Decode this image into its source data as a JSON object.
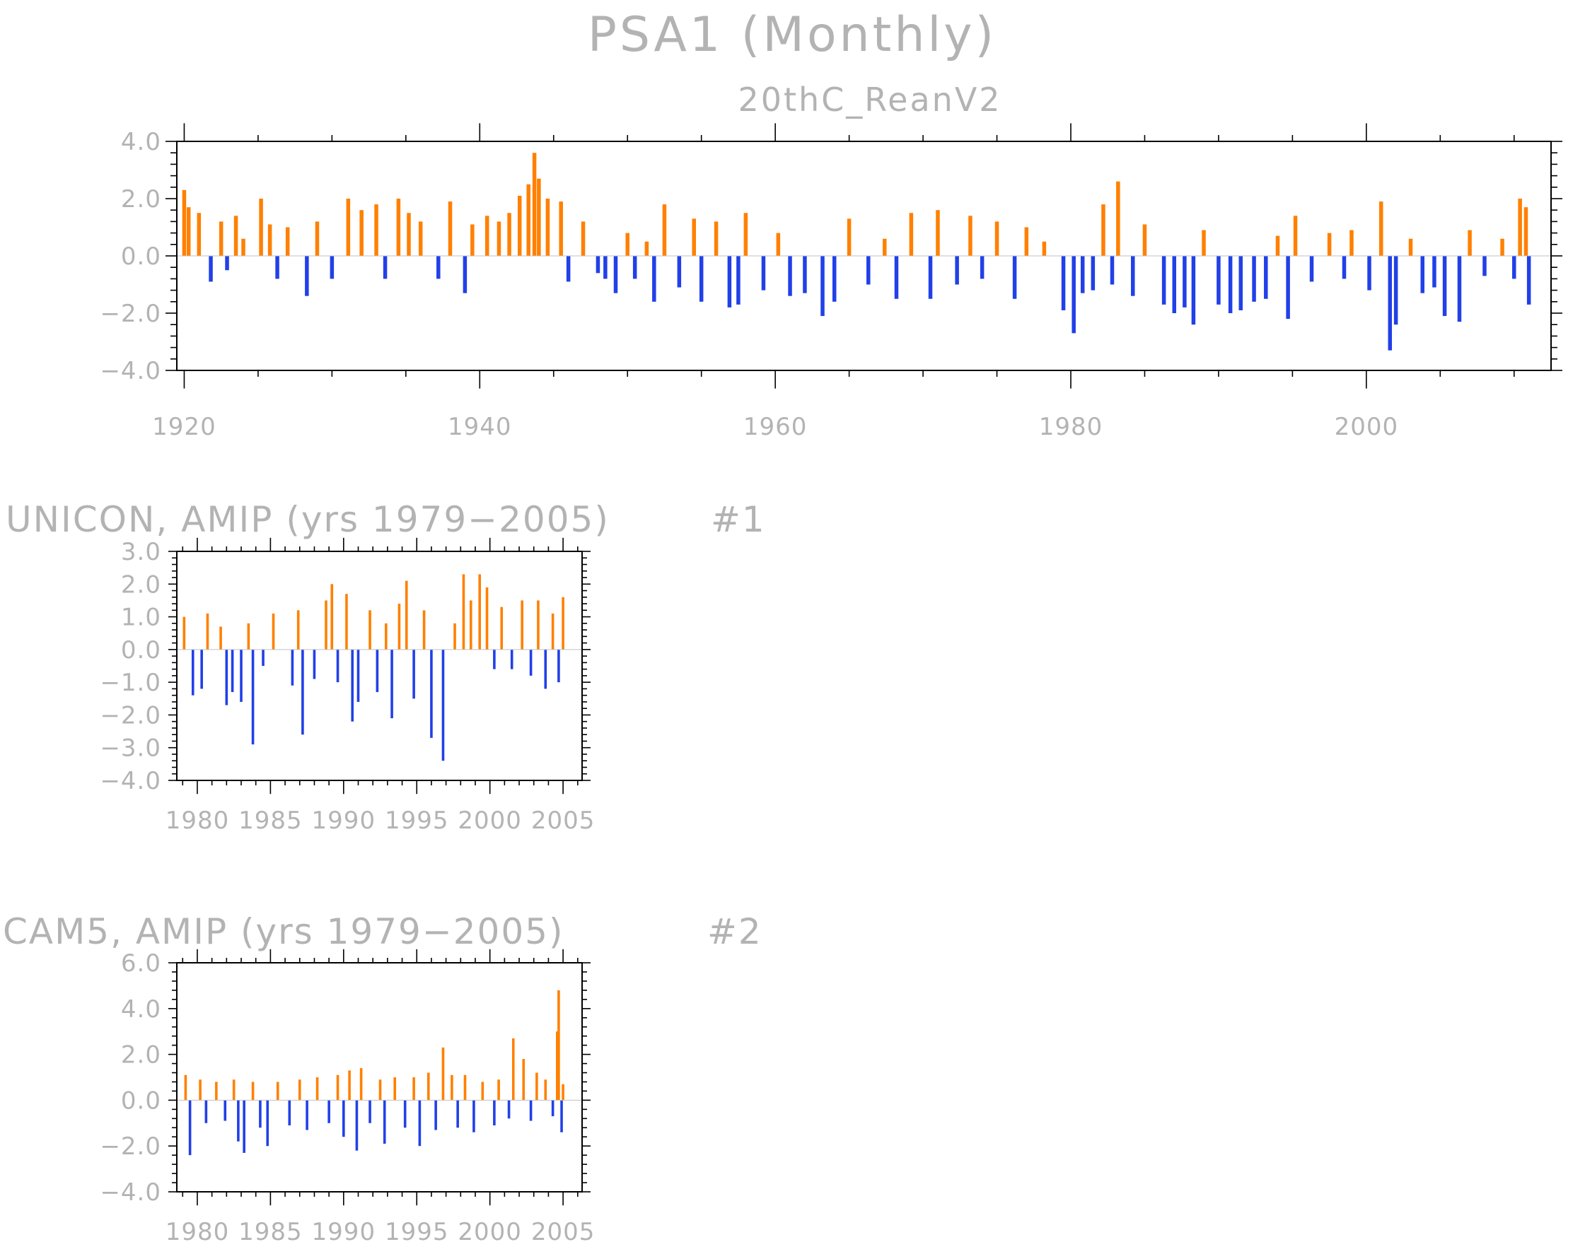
{
  "page": {
    "title": "PSA1 (Monthly)"
  },
  "colors": {
    "positive": "#ff8000",
    "negative": "#2140e8",
    "text": "#b3b3b3",
    "axes": "#000000"
  },
  "chart_data": [
    {
      "type": "bar",
      "title": "",
      "subtitle": "20thC_ReanV2",
      "tag": "",
      "xlabel": "",
      "ylabel": "",
      "x_range": [
        1920,
        2011
      ],
      "xlim": [
        1919.5,
        2012.5
      ],
      "ylim": [
        -4.0,
        4.0
      ],
      "yticks": [
        -4.0,
        -2.0,
        0.0,
        2.0,
        4.0
      ],
      "ytick_labels": [
        "−4.0",
        "−2.0",
        "0.0",
        "2.0",
        "4.0"
      ],
      "xticks": [
        1920,
        1940,
        1960,
        1980,
        2000
      ],
      "xtick_labels": [
        "1920",
        "1940",
        "1960",
        "1980",
        "2000"
      ],
      "x_minor_step": 5,
      "colors": {
        "positive": "#ff8000",
        "negative": "#2140e8"
      },
      "values": [
        [
          1920.0,
          2.3
        ],
        [
          1920.3,
          1.7
        ],
        [
          1921.0,
          1.5
        ],
        [
          1921.8,
          -0.9
        ],
        [
          1922.5,
          1.2
        ],
        [
          1922.9,
          -0.5
        ],
        [
          1923.5,
          1.4
        ],
        [
          1924.0,
          0.6
        ],
        [
          1925.2,
          2.0
        ],
        [
          1925.8,
          1.1
        ],
        [
          1926.3,
          -0.8
        ],
        [
          1927.0,
          1.0
        ],
        [
          1928.3,
          -1.4
        ],
        [
          1929.0,
          1.2
        ],
        [
          1930.0,
          -0.8
        ],
        [
          1931.1,
          2.0
        ],
        [
          1932.0,
          1.6
        ],
        [
          1933.0,
          1.8
        ],
        [
          1933.6,
          -0.8
        ],
        [
          1934.5,
          2.0
        ],
        [
          1935.2,
          1.5
        ],
        [
          1936.0,
          1.2
        ],
        [
          1937.2,
          -0.8
        ],
        [
          1938.0,
          1.9
        ],
        [
          1939.0,
          -1.3
        ],
        [
          1939.5,
          1.1
        ],
        [
          1940.5,
          1.4
        ],
        [
          1941.3,
          1.2
        ],
        [
          1942.0,
          1.5
        ],
        [
          1942.7,
          2.1
        ],
        [
          1943.3,
          2.5
        ],
        [
          1943.7,
          3.6
        ],
        [
          1944.0,
          2.7
        ],
        [
          1944.6,
          2.0
        ],
        [
          1945.5,
          1.9
        ],
        [
          1946.0,
          -0.9
        ],
        [
          1947.0,
          1.2
        ],
        [
          1948.0,
          -0.6
        ],
        [
          1948.5,
          -0.8
        ],
        [
          1949.2,
          -1.3
        ],
        [
          1950.0,
          0.8
        ],
        [
          1950.5,
          -0.8
        ],
        [
          1951.3,
          0.5
        ],
        [
          1951.8,
          -1.6
        ],
        [
          1952.5,
          1.8
        ],
        [
          1953.5,
          -1.1
        ],
        [
          1954.5,
          1.3
        ],
        [
          1955.0,
          -1.6
        ],
        [
          1956.0,
          1.2
        ],
        [
          1956.9,
          -1.8
        ],
        [
          1957.5,
          -1.7
        ],
        [
          1958.0,
          1.5
        ],
        [
          1959.2,
          -1.2
        ],
        [
          1960.2,
          0.8
        ],
        [
          1961.0,
          -1.4
        ],
        [
          1962.0,
          -1.3
        ],
        [
          1963.2,
          -2.1
        ],
        [
          1964.0,
          -1.6
        ],
        [
          1965.0,
          1.3
        ],
        [
          1966.3,
          -1.0
        ],
        [
          1967.4,
          0.6
        ],
        [
          1968.2,
          -1.5
        ],
        [
          1969.2,
          1.5
        ],
        [
          1970.5,
          -1.5
        ],
        [
          1971.0,
          1.6
        ],
        [
          1972.3,
          -1.0
        ],
        [
          1973.2,
          1.4
        ],
        [
          1974.0,
          -0.8
        ],
        [
          1975.0,
          1.2
        ],
        [
          1976.2,
          -1.5
        ],
        [
          1977.0,
          1.0
        ],
        [
          1978.2,
          0.5
        ],
        [
          1979.5,
          -1.9
        ],
        [
          1980.2,
          -2.7
        ],
        [
          1980.8,
          -1.3
        ],
        [
          1981.5,
          -1.2
        ],
        [
          1982.2,
          1.8
        ],
        [
          1982.8,
          -1.0
        ],
        [
          1983.2,
          2.6
        ],
        [
          1984.2,
          -1.4
        ],
        [
          1985.0,
          1.1
        ],
        [
          1986.3,
          -1.7
        ],
        [
          1987.0,
          -2.0
        ],
        [
          1987.7,
          -1.8
        ],
        [
          1988.3,
          -2.4
        ],
        [
          1989.0,
          0.9
        ],
        [
          1990.0,
          -1.7
        ],
        [
          1990.8,
          -2.0
        ],
        [
          1991.5,
          -1.9
        ],
        [
          1992.4,
          -1.6
        ],
        [
          1993.2,
          -1.5
        ],
        [
          1994.0,
          0.7
        ],
        [
          1994.7,
          -2.2
        ],
        [
          1995.2,
          1.4
        ],
        [
          1996.3,
          -0.9
        ],
        [
          1997.5,
          0.8
        ],
        [
          1998.5,
          -0.8
        ],
        [
          1999.0,
          0.9
        ],
        [
          2000.2,
          -1.2
        ],
        [
          2001.0,
          1.9
        ],
        [
          2001.6,
          -3.3
        ],
        [
          2002.0,
          -2.4
        ],
        [
          2003.0,
          0.6
        ],
        [
          2003.8,
          -1.3
        ],
        [
          2004.6,
          -1.1
        ],
        [
          2005.3,
          -2.1
        ],
        [
          2006.3,
          -2.3
        ],
        [
          2007.0,
          0.9
        ],
        [
          2008.0,
          -0.7
        ],
        [
          2009.2,
          0.6
        ],
        [
          2010.0,
          -0.8
        ],
        [
          2010.4,
          2.0
        ],
        [
          2010.8,
          1.7
        ],
        [
          2011.0,
          -1.7
        ]
      ]
    },
    {
      "type": "bar",
      "title": "UNICON, AMIP (yrs 1979−2005)",
      "tag": "#1",
      "xlabel": "",
      "ylabel": "",
      "x_range": [
        1979,
        2005
      ],
      "xlim": [
        1978.6,
        2006.3
      ],
      "ylim": [
        -4.0,
        3.0
      ],
      "yticks": [
        -4.0,
        -3.0,
        -2.0,
        -1.0,
        0.0,
        1.0,
        2.0,
        3.0
      ],
      "ytick_labels": [
        "−4.0",
        "−3.0",
        "−2.0",
        "−1.0",
        "0.0",
        "1.0",
        "2.0",
        "3.0"
      ],
      "xticks": [
        1980,
        1985,
        1990,
        1995,
        2000,
        2005
      ],
      "xtick_labels": [
        "1980",
        "1985",
        "1990",
        "1995",
        "2000",
        "2005"
      ],
      "x_minor_step": 1,
      "colors": {
        "positive": "#ff8000",
        "negative": "#2140e8"
      },
      "values": [
        [
          1979.1,
          1.0
        ],
        [
          1979.7,
          -1.4
        ],
        [
          1980.3,
          -1.2
        ],
        [
          1980.7,
          1.1
        ],
        [
          1981.6,
          0.7
        ],
        [
          1982.0,
          -1.7
        ],
        [
          1982.4,
          -1.3
        ],
        [
          1983.0,
          -1.6
        ],
        [
          1983.5,
          0.8
        ],
        [
          1983.8,
          -2.9
        ],
        [
          1984.5,
          -0.5
        ],
        [
          1985.2,
          1.1
        ],
        [
          1986.5,
          -1.1
        ],
        [
          1986.9,
          1.2
        ],
        [
          1987.2,
          -2.6
        ],
        [
          1988.0,
          -0.9
        ],
        [
          1988.8,
          1.5
        ],
        [
          1989.2,
          2.0
        ],
        [
          1989.6,
          -1.0
        ],
        [
          1990.2,
          1.7
        ],
        [
          1990.6,
          -2.2
        ],
        [
          1991.0,
          -1.6
        ],
        [
          1991.8,
          1.2
        ],
        [
          1992.3,
          -1.3
        ],
        [
          1992.9,
          0.8
        ],
        [
          1993.3,
          -2.1
        ],
        [
          1993.8,
          1.4
        ],
        [
          1994.3,
          2.1
        ],
        [
          1994.8,
          -1.5
        ],
        [
          1995.5,
          1.2
        ],
        [
          1996.0,
          -2.7
        ],
        [
          1996.8,
          -3.4
        ],
        [
          1997.6,
          0.8
        ],
        [
          1998.2,
          2.3
        ],
        [
          1998.7,
          1.5
        ],
        [
          1999.3,
          2.3
        ],
        [
          1999.8,
          1.9
        ],
        [
          2000.3,
          -0.6
        ],
        [
          2000.8,
          1.3
        ],
        [
          2001.5,
          -0.6
        ],
        [
          2002.2,
          1.5
        ],
        [
          2002.8,
          -0.8
        ],
        [
          2003.3,
          1.5
        ],
        [
          2003.8,
          -1.2
        ],
        [
          2004.3,
          1.1
        ],
        [
          2004.7,
          -1.0
        ],
        [
          2005.0,
          1.6
        ]
      ]
    },
    {
      "type": "bar",
      "title": "CAM5, AMIP (yrs 1979−2005)",
      "tag": "#2",
      "xlabel": "",
      "ylabel": "",
      "x_range": [
        1979,
        2005
      ],
      "xlim": [
        1978.6,
        2006.3
      ],
      "ylim": [
        -4.0,
        6.0
      ],
      "yticks": [
        -4.0,
        -2.0,
        0.0,
        2.0,
        4.0,
        6.0
      ],
      "ytick_labels": [
        "−4.0",
        "−2.0",
        "0.0",
        "2.0",
        "4.0",
        "6.0"
      ],
      "xticks": [
        1980,
        1985,
        1990,
        1995,
        2000,
        2005
      ],
      "xtick_labels": [
        "1980",
        "1985",
        "1990",
        "1995",
        "2000",
        "2005"
      ],
      "x_minor_step": 1,
      "colors": {
        "positive": "#ff8000",
        "negative": "#2140e8"
      },
      "values": [
        [
          1979.2,
          1.1
        ],
        [
          1979.5,
          -2.4
        ],
        [
          1980.2,
          0.9
        ],
        [
          1980.6,
          -1.0
        ],
        [
          1981.3,
          0.8
        ],
        [
          1981.9,
          -0.9
        ],
        [
          1982.5,
          0.9
        ],
        [
          1982.8,
          -1.8
        ],
        [
          1983.2,
          -2.3
        ],
        [
          1983.8,
          0.8
        ],
        [
          1984.3,
          -1.2
        ],
        [
          1984.8,
          -2.0
        ],
        [
          1985.5,
          0.8
        ],
        [
          1986.3,
          -1.1
        ],
        [
          1987.0,
          0.9
        ],
        [
          1987.5,
          -1.3
        ],
        [
          1988.2,
          1.0
        ],
        [
          1989.0,
          -1.0
        ],
        [
          1989.6,
          1.1
        ],
        [
          1990.0,
          -1.6
        ],
        [
          1990.4,
          1.3
        ],
        [
          1990.9,
          -2.2
        ],
        [
          1991.2,
          1.4
        ],
        [
          1991.8,
          -1.0
        ],
        [
          1992.5,
          0.9
        ],
        [
          1992.8,
          -1.9
        ],
        [
          1993.5,
          1.0
        ],
        [
          1994.2,
          -1.2
        ],
        [
          1994.8,
          1.0
        ],
        [
          1995.2,
          -2.0
        ],
        [
          1995.8,
          1.2
        ],
        [
          1996.3,
          -1.3
        ],
        [
          1996.8,
          2.3
        ],
        [
          1997.4,
          1.1
        ],
        [
          1997.8,
          -1.2
        ],
        [
          1998.3,
          1.1
        ],
        [
          1998.9,
          -1.4
        ],
        [
          1999.5,
          0.8
        ],
        [
          2000.3,
          -1.1
        ],
        [
          2000.6,
          0.9
        ],
        [
          2001.3,
          -0.8
        ],
        [
          2001.6,
          2.7
        ],
        [
          2002.3,
          1.8
        ],
        [
          2002.8,
          -0.9
        ],
        [
          2003.2,
          1.2
        ],
        [
          2003.8,
          0.9
        ],
        [
          2004.3,
          -0.7
        ],
        [
          2004.6,
          3.0
        ],
        [
          2004.7,
          4.8
        ],
        [
          2004.9,
          -1.4
        ],
        [
          2005.0,
          0.7
        ]
      ]
    }
  ]
}
